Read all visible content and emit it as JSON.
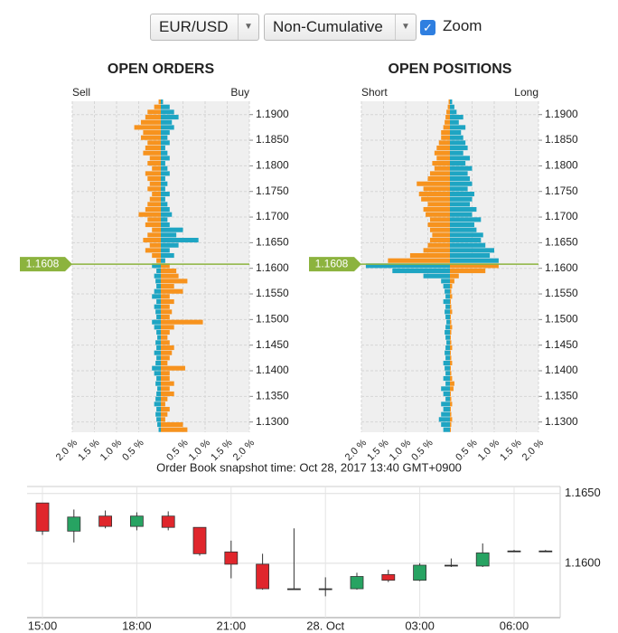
{
  "controls": {
    "instrument": "EUR/USD",
    "mode": "Non-Cumulative",
    "zoom_label": "Zoom",
    "zoom": true
  },
  "snapshot": "Order Book snapshot time: Oct 28, 2017 13:40 GMT+0900",
  "chart_data": [
    {
      "type": "bar",
      "title": "OPEN ORDERS",
      "y": [
        1.1285,
        1.1295,
        1.1305,
        1.1315,
        1.1325,
        1.1335,
        1.1345,
        1.1355,
        1.1365,
        1.1375,
        1.1385,
        1.1395,
        1.1405,
        1.1415,
        1.1425,
        1.1435,
        1.1445,
        1.1455,
        1.1465,
        1.1475,
        1.1485,
        1.1495,
        1.1505,
        1.1515,
        1.1525,
        1.1535,
        1.1545,
        1.1555,
        1.1565,
        1.1575,
        1.1585,
        1.1595,
        1.1605,
        1.1615,
        1.1625,
        1.1635,
        1.1645,
        1.1655,
        1.1665,
        1.1675,
        1.1685,
        1.1695,
        1.1705,
        1.1715,
        1.1725,
        1.1735,
        1.1745,
        1.1755,
        1.1765,
        1.1775,
        1.1785,
        1.1795,
        1.1805,
        1.1815,
        1.1825,
        1.1835,
        1.1845,
        1.1855,
        1.1865,
        1.1875,
        1.1885,
        1.1895,
        1.1905,
        1.1915,
        1.1925
      ],
      "current_price": {
        "value": 1.1608,
        "label": "1.1608"
      },
      "series": [
        {
          "name": "Sell",
          "colors": [
            "#f7931e",
            "#1ea5c3"
          ],
          "values": [
            0.05,
            0.08,
            0.1,
            0.12,
            0.1,
            0.15,
            0.12,
            0.1,
            0.08,
            0.12,
            0.1,
            0.15,
            0.2,
            0.12,
            0.1,
            0.15,
            0.1,
            0.12,
            0.08,
            0.1,
            0.15,
            0.2,
            0.1,
            0.12,
            0.15,
            0.1,
            0.2,
            0.15,
            0.1,
            0.12,
            0.15,
            0.1,
            0.2,
            0.1,
            0.2,
            0.35,
            0.25,
            0.4,
            0.3,
            0.2,
            0.35,
            0.3,
            0.5,
            0.35,
            0.3,
            0.25,
            0.2,
            0.3,
            0.25,
            0.3,
            0.35,
            0.2,
            0.3,
            0.25,
            0.4,
            0.35,
            0.3,
            0.45,
            0.4,
            0.6,
            0.45,
            0.35,
            0.3,
            0.15,
            0.05
          ]
        },
        {
          "name": "Buy",
          "colors": [
            "#1ea5c3",
            "#f7931e"
          ],
          "values": [
            0.6,
            0.5,
            0.1,
            0.15,
            0.2,
            0.1,
            0.15,
            0.3,
            0.2,
            0.3,
            0.2,
            0.2,
            0.55,
            0.15,
            0.2,
            0.25,
            0.3,
            0.2,
            0.15,
            0.2,
            0.3,
            0.95,
            0.2,
            0.25,
            0.2,
            0.3,
            0.2,
            0.5,
            0.3,
            0.6,
            0.4,
            0.35,
            0.2,
            0.1,
            0.3,
            0.2,
            0.4,
            0.85,
            0.35,
            0.5,
            0.2,
            0.15,
            0.25,
            0.2,
            0.15,
            0.1,
            0.2,
            0.1,
            0.15,
            0.1,
            0.2,
            0.15,
            0.1,
            0.2,
            0.15,
            0.1,
            0.2,
            0.15,
            0.2,
            0.3,
            0.25,
            0.4,
            0.3,
            0.2,
            0.05
          ]
        }
      ],
      "xlim": [
        -2,
        2
      ],
      "xticks": [
        {
          "value": -2,
          "label": "2.0 %"
        },
        {
          "value": -1.5,
          "label": "1.5 %"
        },
        {
          "value": -1,
          "label": "1.0 %"
        },
        {
          "value": -0.5,
          "label": "0.5 %"
        },
        {
          "value": 0.5,
          "label": "0.5 %"
        },
        {
          "value": 1,
          "label": "1.0 %"
        },
        {
          "value": 1.5,
          "label": "1.5 %"
        },
        {
          "value": 2,
          "label": "2.0 %"
        }
      ],
      "ylim": [
        1.128,
        1.1926
      ],
      "yticks": [
        {
          "value": 1.13,
          "label": "1.1300"
        },
        {
          "value": 1.135,
          "label": "1.1350"
        },
        {
          "value": 1.14,
          "label": "1.1400"
        },
        {
          "value": 1.145,
          "label": "1.1450"
        },
        {
          "value": 1.15,
          "label": "1.1500"
        },
        {
          "value": 1.155,
          "label": "1.1550"
        },
        {
          "value": 1.16,
          "label": "1.1600"
        },
        {
          "value": 1.165,
          "label": "1.1650"
        },
        {
          "value": 1.17,
          "label": "1.1700"
        },
        {
          "value": 1.175,
          "label": "1.1750"
        },
        {
          "value": 1.18,
          "label": "1.1800"
        },
        {
          "value": 1.185,
          "label": "1.1850"
        },
        {
          "value": 1.19,
          "label": "1.1900"
        }
      ],
      "grid": true
    },
    {
      "type": "bar",
      "title": "OPEN POSITIONS",
      "y": [
        1.1285,
        1.1295,
        1.1305,
        1.1315,
        1.1325,
        1.1335,
        1.1345,
        1.1355,
        1.1365,
        1.1375,
        1.1385,
        1.1395,
        1.1405,
        1.1415,
        1.1425,
        1.1435,
        1.1445,
        1.1455,
        1.1465,
        1.1475,
        1.1485,
        1.1495,
        1.1505,
        1.1515,
        1.1525,
        1.1535,
        1.1545,
        1.1555,
        1.1565,
        1.1575,
        1.1585,
        1.1595,
        1.1605,
        1.1615,
        1.1625,
        1.1635,
        1.1645,
        1.1655,
        1.1665,
        1.1675,
        1.1685,
        1.1695,
        1.1705,
        1.1715,
        1.1725,
        1.1735,
        1.1745,
        1.1755,
        1.1765,
        1.1775,
        1.1785,
        1.1795,
        1.1805,
        1.1815,
        1.1825,
        1.1835,
        1.1845,
        1.1855,
        1.1865,
        1.1875,
        1.1885,
        1.1895,
        1.1905,
        1.1915,
        1.1925
      ],
      "current_price": {
        "value": 1.1608,
        "label": "1.1608"
      },
      "series": [
        {
          "name": "Short",
          "colors": [
            "#f7931e",
            "#1ea5c3"
          ],
          "values": [
            0.15,
            0.2,
            0.25,
            0.2,
            0.15,
            0.2,
            0.1,
            0.15,
            0.2,
            0.1,
            0.15,
            0.1,
            0.12,
            0.15,
            0.1,
            0.12,
            0.1,
            0.08,
            0.1,
            0.12,
            0.1,
            0.08,
            0.1,
            0.12,
            0.1,
            0.15,
            0.1,
            0.12,
            0.15,
            0.2,
            0.6,
            1.3,
            1.9,
            1.4,
            0.9,
            0.6,
            0.5,
            0.45,
            0.4,
            0.45,
            0.5,
            0.45,
            0.55,
            0.6,
            0.5,
            0.65,
            0.7,
            0.6,
            0.75,
            0.5,
            0.45,
            0.35,
            0.4,
            0.3,
            0.35,
            0.3,
            0.25,
            0.2,
            0.2,
            0.15,
            0.12,
            0.1,
            0.08,
            0.05,
            0.03
          ]
        },
        {
          "name": "Long",
          "colors": [
            "#1ea5c3",
            "#f7931e"
          ],
          "values": [
            0.02,
            0.03,
            0.05,
            0.03,
            0.02,
            0.05,
            0.03,
            0.02,
            0.08,
            0.1,
            0.05,
            0.03,
            0.02,
            0.05,
            0.03,
            0.02,
            0.05,
            0.03,
            0.02,
            0.03,
            0.05,
            0.03,
            0.02,
            0.05,
            0.03,
            0.02,
            0.05,
            0.03,
            0.05,
            0.1,
            0.2,
            0.8,
            1.1,
            1.1,
            0.9,
            1.0,
            0.8,
            0.7,
            0.75,
            0.6,
            0.55,
            0.7,
            0.5,
            0.6,
            0.45,
            0.5,
            0.55,
            0.4,
            0.5,
            0.45,
            0.4,
            0.5,
            0.35,
            0.45,
            0.3,
            0.4,
            0.35,
            0.3,
            0.25,
            0.35,
            0.2,
            0.3,
            0.15,
            0.1,
            0.05
          ]
        }
      ],
      "xlim": [
        -2,
        2
      ],
      "xticks": [
        {
          "value": -2,
          "label": "2.0 %"
        },
        {
          "value": -1.5,
          "label": "1.5 %"
        },
        {
          "value": -1,
          "label": "1.0 %"
        },
        {
          "value": -0.5,
          "label": "0.5 %"
        },
        {
          "value": 0.5,
          "label": "0.5 %"
        },
        {
          "value": 1,
          "label": "1.0 %"
        },
        {
          "value": 1.5,
          "label": "1.5 %"
        },
        {
          "value": 2,
          "label": "2.0 %"
        }
      ],
      "ylim": [
        1.128,
        1.1926
      ],
      "yticks": [
        {
          "value": 1.13,
          "label": "1.1300"
        },
        {
          "value": 1.135,
          "label": "1.1350"
        },
        {
          "value": 1.14,
          "label": "1.1400"
        },
        {
          "value": 1.145,
          "label": "1.1450"
        },
        {
          "value": 1.15,
          "label": "1.1500"
        },
        {
          "value": 1.155,
          "label": "1.1550"
        },
        {
          "value": 1.16,
          "label": "1.1600"
        },
        {
          "value": 1.165,
          "label": "1.1650"
        },
        {
          "value": 1.17,
          "label": "1.1700"
        },
        {
          "value": 1.175,
          "label": "1.1750"
        },
        {
          "value": 1.18,
          "label": "1.1800"
        },
        {
          "value": 1.185,
          "label": "1.1850"
        },
        {
          "value": 1.19,
          "label": "1.1900"
        }
      ],
      "grid": true
    },
    {
      "type": "candlestick",
      "categories": [
        "15:00",
        null,
        null,
        "18:00",
        null,
        null,
        "21:00",
        null,
        null,
        "28. Oct",
        null,
        null,
        "03:00",
        null,
        null,
        "06:00",
        null
      ],
      "open": [
        1.16432,
        1.1623,
        1.16338,
        1.16264,
        1.16338,
        1.16257,
        1.16081,
        1.15993,
        1.15817,
        1.15817,
        1.15817,
        1.15919,
        1.15878,
        1.15986,
        1.1598,
        1.16088,
        1.16088
      ],
      "high": [
        1.16432,
        1.16385,
        1.16378,
        1.16365,
        1.16372,
        1.16257,
        1.16162,
        1.16068,
        1.1625,
        1.15899,
        1.15932,
        1.15953,
        1.16,
        1.16034,
        1.16142,
        1.16095,
        1.16095
      ],
      "low": [
        1.16203,
        1.16149,
        1.1625,
        1.16236,
        1.16236,
        1.16054,
        1.15892,
        1.1581,
        1.1581,
        1.15763,
        1.1581,
        1.15865,
        1.15872,
        1.15973,
        1.15973,
        1.16081,
        1.16081
      ],
      "close": [
        1.1623,
        1.16331,
        1.16264,
        1.16338,
        1.16257,
        1.16068,
        1.15993,
        1.15817,
        1.15817,
        1.15817,
        1.15905,
        1.15878,
        1.15986,
        1.15986,
        1.16074,
        1.16088,
        1.16088
      ],
      "up_color": "#27a362",
      "down_color": "#e0262c",
      "ylim": [
        1.1561,
        1.1655
      ],
      "yticks": [
        {
          "value": 1.16,
          "label": "1.1600"
        },
        {
          "value": 1.165,
          "label": "1.1650"
        }
      ],
      "grid": true
    }
  ]
}
